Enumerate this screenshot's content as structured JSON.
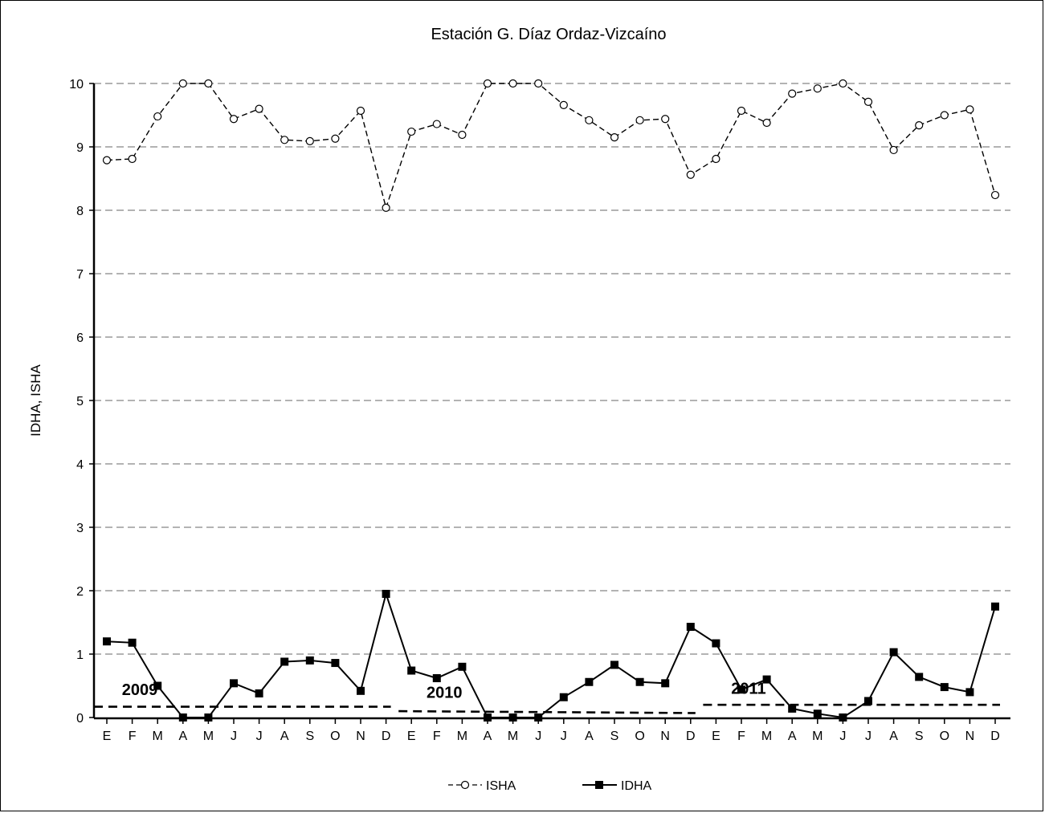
{
  "chart_data": {
    "type": "line",
    "title": "Estación G. Díaz Ordaz-Vizcaíno",
    "xlabel": "",
    "ylabel": "IDHA, ISHA",
    "ylim": [
      0,
      10
    ],
    "yticks": [
      "0",
      "1",
      "2",
      "3",
      "4",
      "5",
      "6",
      "7",
      "8",
      "9",
      "10"
    ],
    "grid": "horizontal dashed",
    "legend_placement": "bottom-center",
    "categories": [
      "E",
      "F",
      "M",
      "A",
      "M",
      "J",
      "J",
      "A",
      "S",
      "O",
      "N",
      "D",
      "E",
      "F",
      "M",
      "A",
      "M",
      "J",
      "J",
      "A",
      "S",
      "O",
      "N",
      "D",
      "E",
      "F",
      "M",
      "A",
      "M",
      "J",
      "J",
      "A",
      "S",
      "O",
      "N",
      "D"
    ],
    "series": [
      {
        "name": "ISHA",
        "style": "dashed-open-circle",
        "color": "#000000",
        "values": [
          8.79,
          8.81,
          9.48,
          10.0,
          10.0,
          9.44,
          9.6,
          9.11,
          9.09,
          9.13,
          9.57,
          8.04,
          9.24,
          9.36,
          9.19,
          10.0,
          10.0,
          10.0,
          9.66,
          9.42,
          9.15,
          9.42,
          9.44,
          8.56,
          8.81,
          9.57,
          9.38,
          9.84,
          9.92,
          10.0,
          9.71,
          8.95,
          9.34,
          9.5,
          9.59,
          8.24
        ]
      },
      {
        "name": "IDHA",
        "style": "solid-filled-square",
        "color": "#000000",
        "values": [
          1.2,
          1.18,
          0.5,
          0.0,
          0.0,
          0.54,
          0.38,
          0.88,
          0.9,
          0.86,
          0.42,
          1.95,
          0.74,
          0.62,
          0.8,
          0.0,
          0.0,
          0.0,
          0.32,
          0.56,
          0.83,
          0.56,
          0.54,
          1.43,
          1.17,
          0.44,
          0.6,
          0.14,
          0.06,
          0.0,
          0.26,
          1.03,
          0.64,
          0.48,
          0.4,
          1.75
        ]
      }
    ],
    "annual_reference_lines": [
      {
        "label": "2009",
        "start_index": 0,
        "end_index": 11,
        "y_start": 0.17,
        "y_end": 0.17
      },
      {
        "label": "2010",
        "start_index": 12,
        "end_index": 23,
        "y_start": 0.1,
        "y_end": 0.07
      },
      {
        "label": "2011",
        "start_index": 24,
        "end_index": 35,
        "y_start": 0.2,
        "y_end": 0.2
      }
    ],
    "year_label_values": [
      0.44,
      0.4,
      0.46
    ]
  }
}
